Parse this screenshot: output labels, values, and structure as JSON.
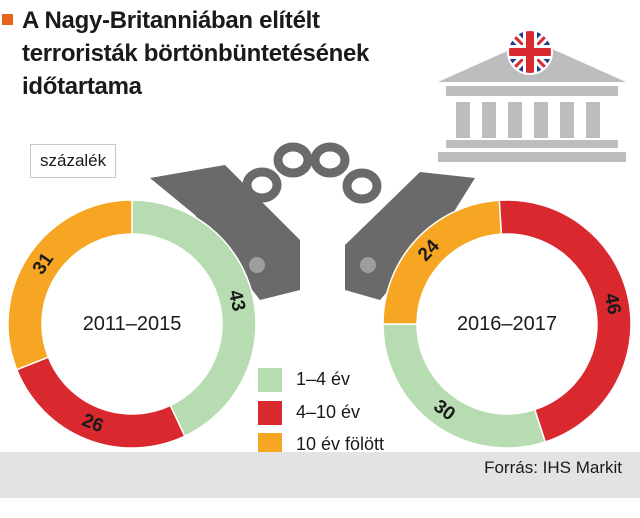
{
  "title": "A Nagy-Britanniában elítélt terroristák börtönbüntetésének időtartama",
  "unit_label": "százalék",
  "source": "Forrás: IHS Markit",
  "colors": {
    "short": "#b7dcb1",
    "medium": "#d9282e",
    "long": "#f6a623",
    "cuff": "#6a6a6a",
    "building": "#bdbdbd",
    "accent": "#e8641b"
  },
  "icons": [
    "handcuffs-icon",
    "courthouse-icon",
    "uk-flag-icon"
  ],
  "chart_data": [
    {
      "type": "pie",
      "label": "2011–2015",
      "categories": [
        "1–4 év",
        "4–10 év",
        "10 év fölött"
      ],
      "values": [
        43,
        26,
        31
      ]
    },
    {
      "type": "pie",
      "label": "2016–2017",
      "categories": [
        "1–4 év",
        "4–10 év",
        "10 év fölött"
      ],
      "values": [
        30,
        46,
        24
      ]
    }
  ],
  "legend": [
    {
      "label": "1–4 év",
      "color": "#b7dcb1"
    },
    {
      "label": "4–10 év",
      "color": "#d9282e"
    },
    {
      "label": "10 év fölött",
      "color": "#f6a623"
    }
  ]
}
